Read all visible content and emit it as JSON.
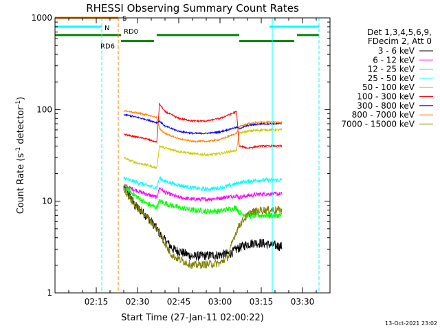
{
  "chart_data": {
    "type": "line",
    "title": "RHESSI Observing Summary Count Rates",
    "xlabel": "Start Time (27-Jan-11 02:00:22)",
    "ylabel_prefix": "Count Rate (s",
    "ylabel_sup1": "-1",
    "ylabel_mid": " detector",
    "ylabel_sup2": "-1",
    "ylabel_suffix": ")",
    "y_scale": "log",
    "ylim": [
      1,
      1000
    ],
    "xlim_minutes": [
      0,
      100
    ],
    "x_ticks": [
      {
        "m": 15,
        "label": "02:15"
      },
      {
        "m": 30,
        "label": "02:30"
      },
      {
        "m": 45,
        "label": "02:45"
      },
      {
        "m": 60,
        "label": "03:00"
      },
      {
        "m": 75,
        "label": "03:15"
      },
      {
        "m": 90,
        "label": "03:30"
      }
    ],
    "y_ticks": [
      {
        "v": 1,
        "label": "1"
      },
      {
        "v": 10,
        "label": "10"
      },
      {
        "v": 100,
        "label": "100"
      },
      {
        "v": 1000,
        "label": "1000"
      }
    ],
    "legend_header": [
      "Det 1,3,4,5,6,9,",
      "FDecim 2, Att 0"
    ],
    "legend_position": "right",
    "date_stamp": "13-Oct-2021 23:02",
    "flag_labels": {
      "S": "S",
      "N": "N",
      "RD0": "RD0",
      "RD6": "RD6"
    },
    "flag_bars": [
      {
        "name": "S",
        "color": "#ff8000",
        "y": 1000,
        "segments": [
          [
            0,
            23
          ]
        ]
      },
      {
        "name": "N",
        "color": "#00ffff",
        "y": 800,
        "segments": [
          [
            0,
            17
          ],
          [
            78,
            96
          ]
        ]
      },
      {
        "name": "RD0",
        "color": "#008000",
        "y": 650,
        "segments": [
          [
            0,
            24
          ],
          [
            37,
            67
          ],
          [
            88,
            96
          ]
        ]
      },
      {
        "name": "RD6",
        "color": "#008000",
        "y": 560,
        "segments": [
          [
            24,
            36
          ],
          [
            67,
            87
          ]
        ]
      }
    ],
    "vlines": [
      {
        "m": 0,
        "color": "#00ffff",
        "dash": false
      },
      {
        "m": 17,
        "color": "#00ffff",
        "dash": true
      },
      {
        "m": 23,
        "color": "#ff8000",
        "dash": true
      },
      {
        "m": 79,
        "color": "#00ffff",
        "dash": false
      },
      {
        "m": 96,
        "color": "#00ffff",
        "dash": true
      }
    ],
    "series": [
      {
        "name": "3 - 6 keV",
        "color": "#000000",
        "noise": 0.12,
        "x": [
          25,
          27,
          29,
          31,
          33,
          35,
          37,
          39,
          41,
          43,
          50,
          60,
          64,
          66,
          68,
          70,
          72,
          75,
          77,
          80,
          82.5
        ],
        "y": [
          14,
          12,
          9,
          8,
          7,
          6,
          5,
          4,
          3.5,
          3,
          2.5,
          2.6,
          2.7,
          3,
          3.2,
          3.4,
          3.5,
          3.5,
          3.4,
          3.3,
          3.2
        ]
      },
      {
        "name": "6 - 12 keV",
        "color": "#ff00ff",
        "noise": 0.05,
        "x": [
          25,
          27,
          30,
          33,
          35,
          37,
          38,
          40,
          45,
          50,
          55,
          60,
          66,
          67,
          70,
          75,
          80,
          82.5
        ],
        "y": [
          15,
          14,
          13,
          12,
          11.5,
          11,
          14,
          12.5,
          11,
          10.5,
          10.5,
          10.8,
          11.5,
          11,
          11.5,
          12,
          12,
          12
        ]
      },
      {
        "name": "12 - 25 keV",
        "color": "#00ff00",
        "noise": 0.07,
        "x": [
          25,
          27,
          30,
          33,
          35,
          37,
          38,
          40,
          45,
          50,
          55,
          60,
          66,
          67,
          70,
          75,
          80,
          82.5
        ],
        "y": [
          15,
          13,
          11,
          9.5,
          9,
          8.5,
          10,
          9.5,
          8.5,
          8,
          7.8,
          7.8,
          8.5,
          7.5,
          7,
          7,
          7,
          7
        ]
      },
      {
        "name": "25 - 50 keV",
        "color": "#00ffff",
        "noise": 0.05,
        "x": [
          25,
          27,
          30,
          33,
          35,
          37,
          38,
          40,
          45,
          50,
          55,
          60,
          66,
          67,
          70,
          75,
          80,
          82.5
        ],
        "y": [
          18,
          17,
          16,
          15,
          14.5,
          14,
          18,
          16.5,
          15,
          14,
          13.5,
          14,
          15.5,
          16,
          16.5,
          17,
          17,
          17
        ]
      },
      {
        "name": "50 - 100 keV",
        "color": "#cccc00",
        "noise": 0.03,
        "x": [
          25,
          27,
          30,
          33,
          35,
          37,
          38,
          40,
          45,
          50,
          55,
          60,
          66,
          67,
          70,
          75,
          80,
          82.5
        ],
        "y": [
          30,
          28,
          26,
          25,
          24,
          23,
          40,
          38,
          35,
          33,
          32,
          33,
          36,
          55,
          58,
          60,
          60,
          60
        ]
      },
      {
        "name": "100 - 300 keV",
        "color": "#ff0000",
        "noise": 0.02,
        "x": [
          25,
          27,
          30,
          33,
          35,
          37,
          38,
          40,
          45,
          50,
          55,
          60,
          66,
          67,
          70,
          75,
          80,
          82.5
        ],
        "y": [
          54,
          52,
          50,
          48,
          46,
          44,
          115,
          95,
          80,
          75,
          75,
          80,
          95,
          40,
          38,
          40,
          40,
          40
        ]
      },
      {
        "name": "300 - 800 keV",
        "color": "#0000ff",
        "noise": 0.02,
        "x": [
          25,
          27,
          30,
          33,
          35,
          37,
          38,
          40,
          45,
          50,
          55,
          60,
          66,
          67,
          70,
          75,
          80,
          82.5
        ],
        "y": [
          88,
          86,
          82,
          78,
          75,
          72,
          75,
          66,
          58,
          55,
          55,
          57,
          64,
          62,
          67,
          70,
          70,
          70
        ]
      },
      {
        "name": "800 - 7000 keV",
        "color": "#ff8000",
        "noise": 0.02,
        "x": [
          25,
          27,
          30,
          33,
          35,
          37,
          38,
          40,
          45,
          50,
          55,
          60,
          66,
          67,
          70,
          75,
          80,
          82.5
        ],
        "y": [
          97,
          95,
          92,
          88,
          85,
          82,
          62,
          55,
          48,
          45,
          45,
          47,
          55,
          65,
          70,
          73,
          73,
          72
        ]
      },
      {
        "name": "7000 - 15000 keV",
        "color": "#808000",
        "noise": 0.1,
        "x": [
          25,
          27,
          29,
          31,
          33,
          35,
          37,
          39,
          41,
          43,
          50,
          60,
          63,
          65,
          67,
          69,
          71,
          75,
          80,
          82.5
        ],
        "y": [
          14,
          11,
          9,
          8,
          7,
          6,
          5,
          4,
          3,
          2.5,
          2,
          2.1,
          2.5,
          4,
          5.5,
          6.5,
          7.5,
          8,
          8,
          8
        ]
      }
    ]
  }
}
